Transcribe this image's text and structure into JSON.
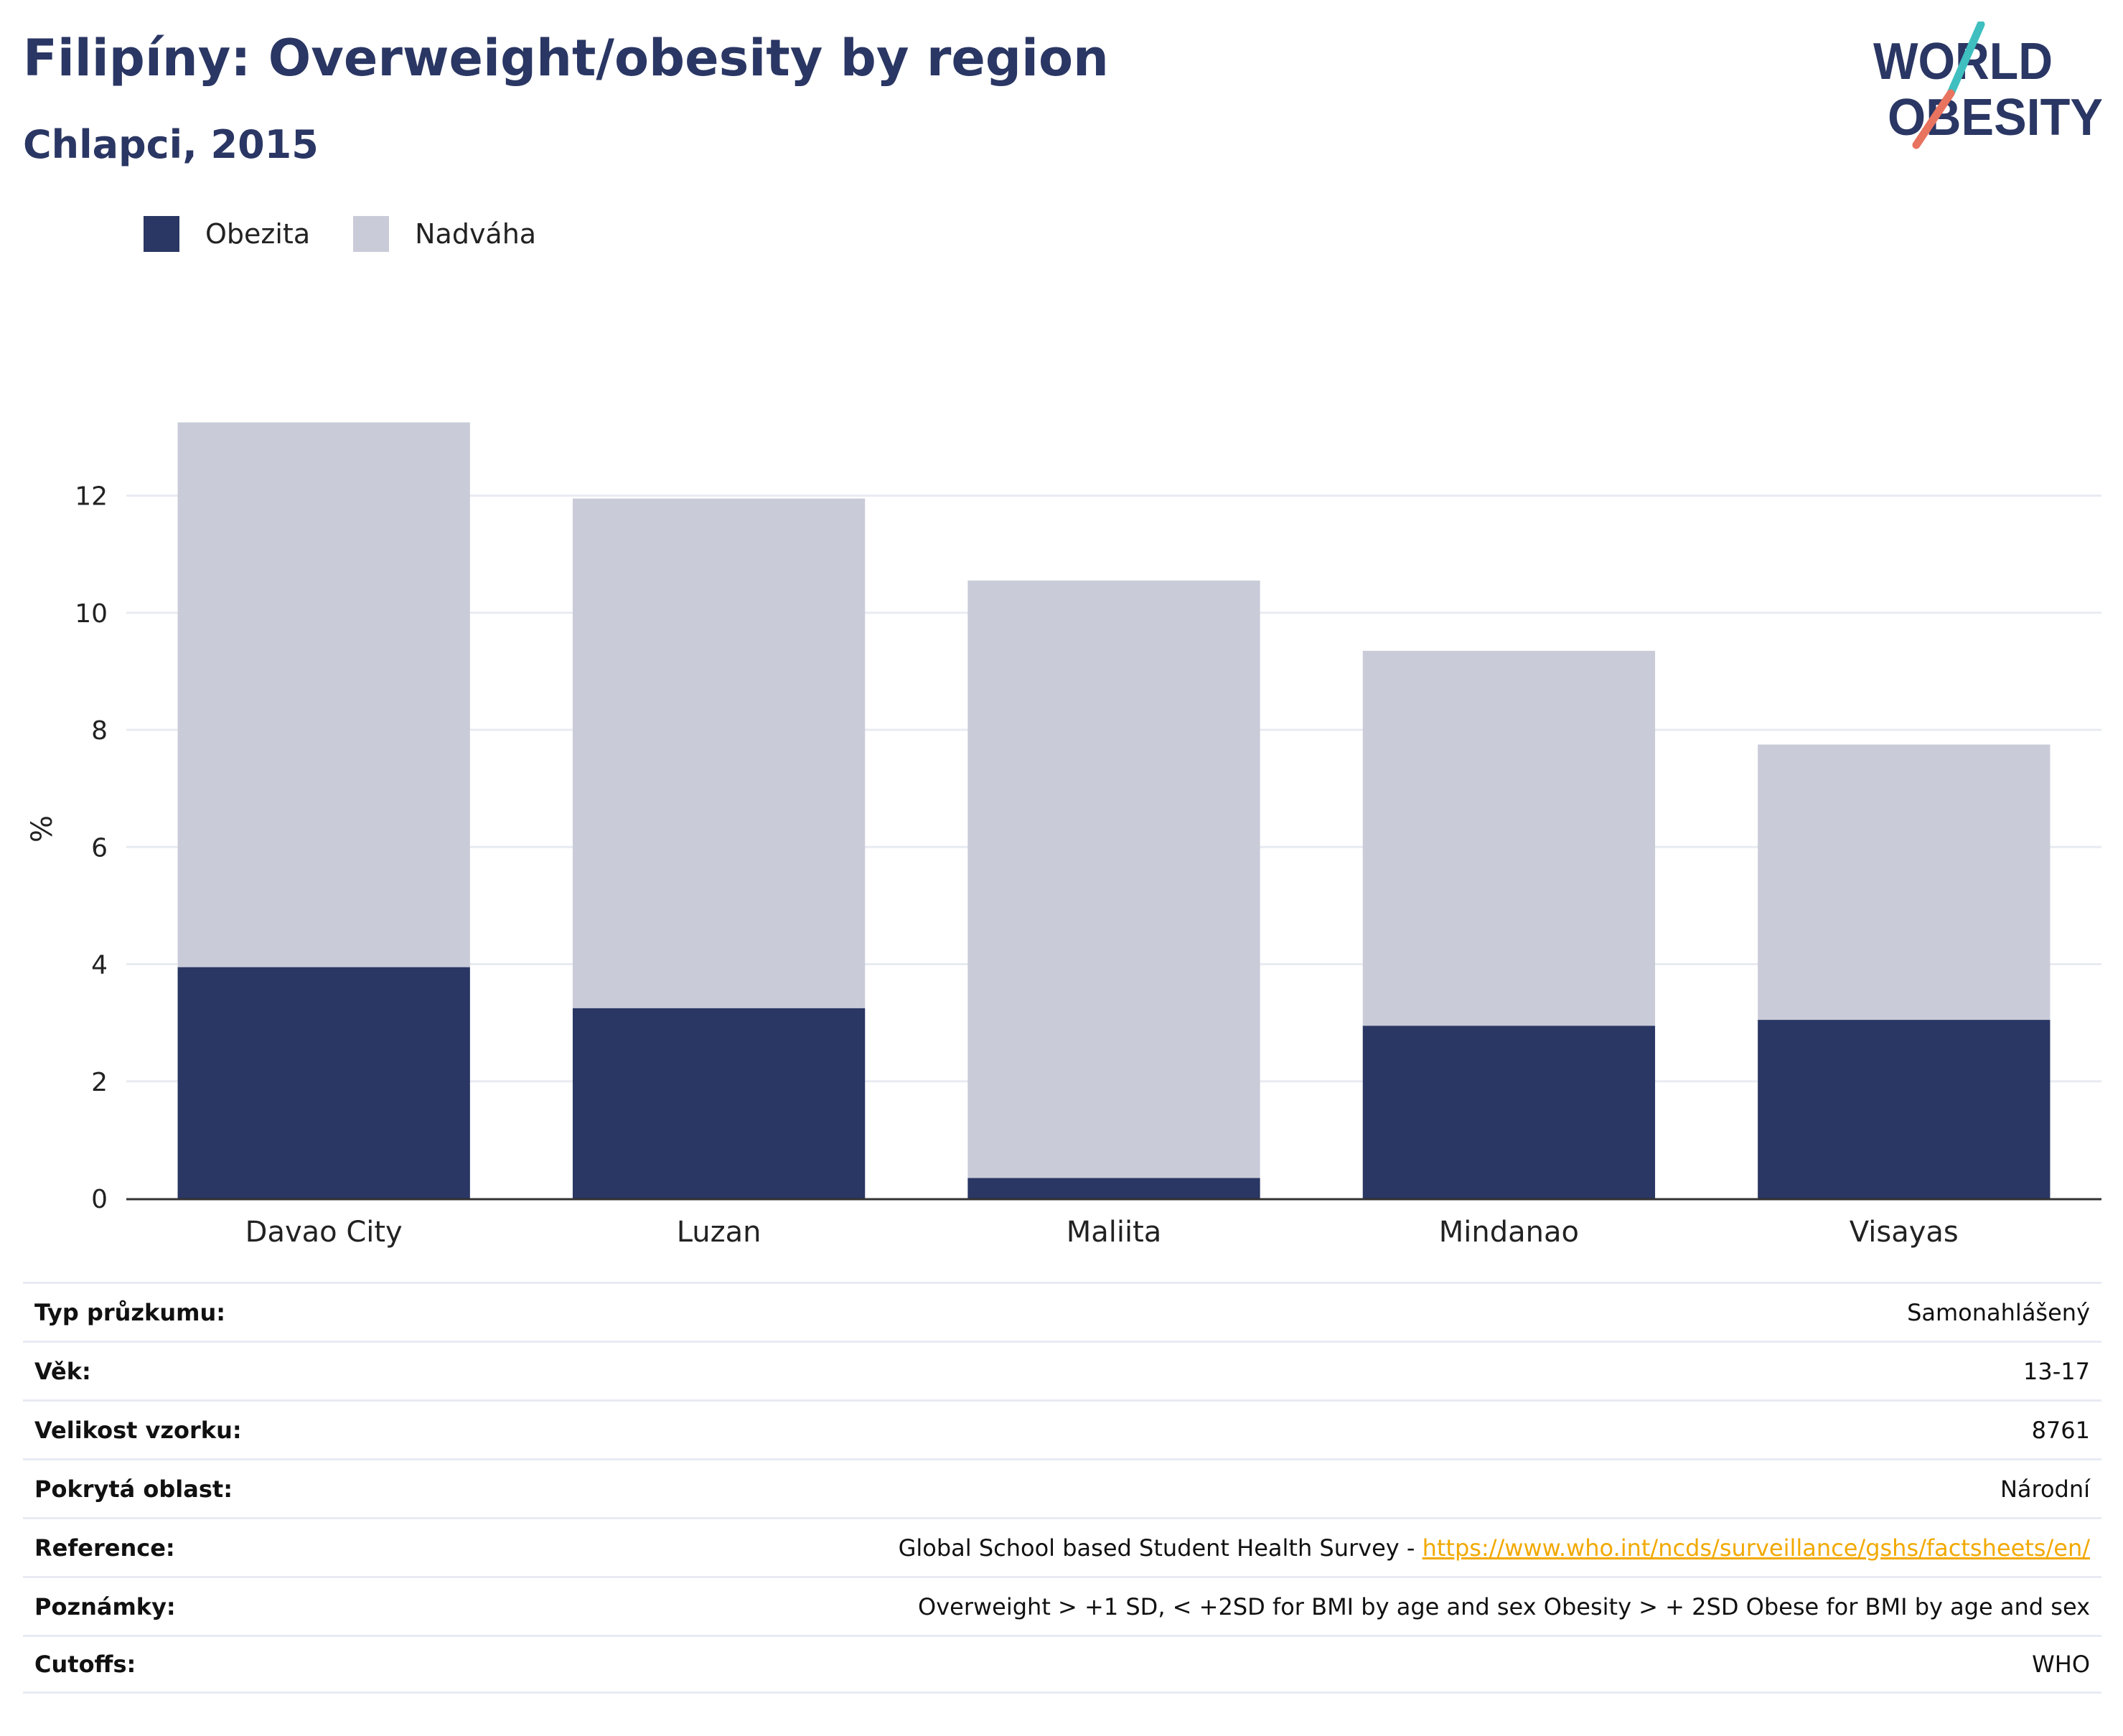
{
  "header": {
    "title": "Filipíny: Overweight/obesity by region",
    "subtitle": "Chlapci, 2015"
  },
  "logo": {
    "line1": "WORLD",
    "line2": "OBESITY",
    "colors": {
      "text": "#2a3663",
      "slash_top": "#3fbfbf",
      "slash_bottom": "#e8735f"
    }
  },
  "colors": {
    "obezita": "#2a3663",
    "nadvaha": "#c9ccd8",
    "grid": "#e9ebf2",
    "axis": "#333333",
    "link": "#f2a900"
  },
  "chart_data": {
    "type": "bar",
    "stacked": true,
    "categories": [
      "Davao City",
      "Luzan",
      "Maliita",
      "Mindanao",
      "Visayas"
    ],
    "series": [
      {
        "name": "Obezita",
        "color": "#2a3663",
        "values": [
          3.95,
          3.25,
          0.35,
          2.95,
          3.05
        ]
      },
      {
        "name": "Nadváha",
        "color": "#c9ccd8",
        "values": [
          9.3,
          8.7,
          10.2,
          6.4,
          4.7
        ]
      }
    ],
    "ylabel": "%",
    "ylim": [
      0,
      13.6
    ],
    "yticks": [
      0,
      2,
      4,
      6,
      8,
      10,
      12
    ],
    "grid": true,
    "legend_position": "top-left"
  },
  "info_table": [
    {
      "label": "Typ průzkumu:",
      "value": "Samonahlášený"
    },
    {
      "label": "Věk:",
      "value": "13-17"
    },
    {
      "label": "Velikost vzorku:",
      "value": "8761"
    },
    {
      "label": "Pokrytá oblast:",
      "value": "Národní"
    },
    {
      "label": "Reference:",
      "value": "Global School based Student Health Survey - ",
      "link": "https://www.who.int/ncds/surveillance/gshs/factsheets/en/"
    },
    {
      "label": "Poznámky:",
      "value": "Overweight > +1 SD, < +2SD for BMI by age and sex Obesity > + 2SD Obese for BMI by age and sex"
    },
    {
      "label": "Cutoffs:",
      "value": "WHO"
    }
  ]
}
